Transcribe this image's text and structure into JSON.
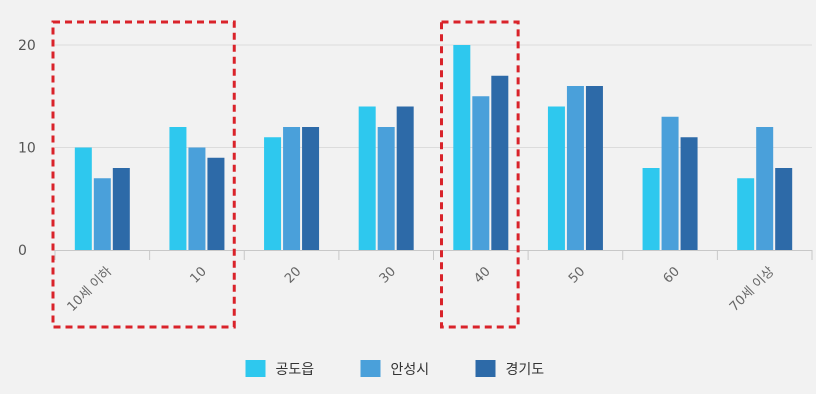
{
  "chart_data": {
    "type": "bar",
    "categories": [
      "10세 이하",
      "10",
      "20",
      "30",
      "40",
      "50",
      "60",
      "70세 이상"
    ],
    "series": [
      {
        "name": "공도읍",
        "color": "#2ec8ee",
        "values": [
          10,
          12,
          11,
          14,
          20,
          14,
          8,
          7
        ]
      },
      {
        "name": "안성시",
        "color": "#4aa0da",
        "values": [
          7,
          10,
          12,
          12,
          15,
          16,
          13,
          12
        ]
      },
      {
        "name": "경기도",
        "color": "#2d6aa8",
        "values": [
          8,
          9,
          12,
          14,
          17,
          16,
          11,
          8
        ]
      }
    ],
    "title": "",
    "xlabel": "",
    "ylabel": "",
    "ylim": [
      0,
      21
    ],
    "yticks": [
      "0",
      "10",
      "20"
    ],
    "grid": true,
    "legend": "bottom-center",
    "highlighted_categories": [
      "10세 이하",
      "10",
      "40"
    ],
    "highlight_color": "#d9232a"
  }
}
